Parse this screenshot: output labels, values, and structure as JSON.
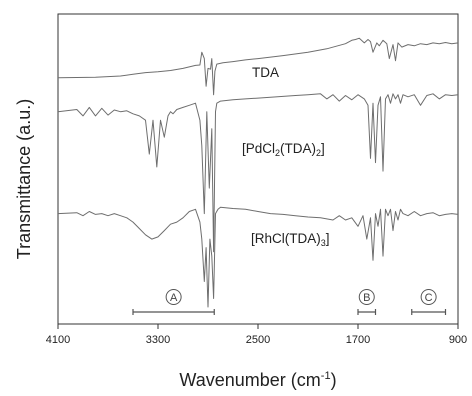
{
  "chart_data": {
    "type": "line",
    "xlabel": "Wavenumber (cm⁻¹)",
    "ylabel": "Transmittance (a.u.)",
    "xlim": [
      4100,
      900
    ],
    "x_reversed": true,
    "x_ticks": [
      4100,
      3300,
      2500,
      1700,
      900
    ],
    "y_ticks": [],
    "series": [
      {
        "name": "TDA",
        "label_parts": [
          "TDA"
        ],
        "color": "#6e6e6e",
        "x": [
          4100,
          3800,
          3600,
          3500,
          3400,
          3300,
          3200,
          3100,
          3000,
          2965,
          2950,
          2930,
          2915,
          2900,
          2880,
          2870,
          2855,
          2845,
          2830,
          2780,
          2700,
          2600,
          2500,
          2300,
          2100,
          1950,
          1800,
          1750,
          1720,
          1690,
          1650,
          1620,
          1600,
          1580,
          1550,
          1530,
          1500,
          1470,
          1450,
          1420,
          1400,
          1380,
          1350,
          1300,
          1250,
          1200,
          1150,
          1100,
          1050,
          1000,
          950,
          900
        ],
        "y": [
          0.8,
          0.81,
          0.84,
          0.88,
          0.92,
          0.94,
          0.97,
          1.02,
          1.09,
          1.1,
          1.4,
          1.25,
          0.6,
          1.02,
          1.0,
          1.25,
          0.4,
          0.95,
          1.12,
          1.15,
          1.18,
          1.22,
          1.25,
          1.32,
          1.4,
          1.48,
          1.6,
          1.68,
          1.7,
          1.73,
          1.62,
          1.7,
          1.65,
          1.4,
          1.62,
          1.55,
          1.68,
          1.6,
          1.25,
          1.58,
          1.2,
          1.62,
          1.52,
          1.58,
          1.55,
          1.6,
          1.58,
          1.62,
          1.6,
          1.63,
          1.6,
          1.62
        ]
      },
      {
        "name": "[PdCl2(TDA)2]",
        "label_parts": [
          "[PdCl",
          "2",
          "(TDA)",
          "2",
          "]"
        ],
        "color": "#6e6e6e",
        "x": [
          4100,
          3950,
          3900,
          3850,
          3800,
          3750,
          3700,
          3650,
          3600,
          3550,
          3500,
          3450,
          3400,
          3370,
          3340,
          3310,
          3280,
          3250,
          3220,
          3200,
          3180,
          3150,
          3100,
          3050,
          3000,
          2965,
          2950,
          2930,
          2910,
          2890,
          2870,
          2855,
          2840,
          2830,
          2800,
          2700,
          2600,
          2500,
          2400,
          2300,
          2200,
          2100,
          2000,
          1950,
          1900,
          1850,
          1800,
          1750,
          1700,
          1650,
          1620,
          1600,
          1580,
          1560,
          1540,
          1520,
          1500,
          1480,
          1460,
          1440,
          1420,
          1400,
          1380,
          1360,
          1340,
          1300,
          1250,
          1200,
          1150,
          1100,
          1050,
          1000,
          950,
          900
        ],
        "y": [
          0.0,
          0.05,
          -0.1,
          0.1,
          -0.1,
          0.08,
          -0.08,
          0.04,
          0.0,
          0.02,
          -0.05,
          -0.1,
          -0.2,
          -1.0,
          -0.2,
          -1.3,
          -0.2,
          -0.6,
          -0.1,
          0.0,
          -0.05,
          0.05,
          0.1,
          0.15,
          0.2,
          -0.2,
          -0.8,
          -2.4,
          0.0,
          -1.8,
          -0.4,
          -3.3,
          0.0,
          0.2,
          0.25,
          0.28,
          0.3,
          0.32,
          0.34,
          0.36,
          0.38,
          0.4,
          0.42,
          0.3,
          0.4,
          0.25,
          0.38,
          0.28,
          0.4,
          0.3,
          0.15,
          -1.1,
          0.2,
          -1.2,
          0.15,
          0.35,
          -1.4,
          0.3,
          0.4,
          0.2,
          0.42,
          0.3,
          0.4,
          0.2,
          0.4,
          0.35,
          0.4,
          0.15,
          0.38,
          0.42,
          0.3,
          0.4,
          0.38,
          0.4
        ]
      },
      {
        "name": "[RhCl(TDA)3]",
        "label_parts": [
          "[RhCl(TDA)",
          "3",
          "]"
        ],
        "color": "#6e6e6e",
        "x": [
          4100,
          3950,
          3900,
          3850,
          3800,
          3750,
          3700,
          3650,
          3600,
          3550,
          3500,
          3450,
          3400,
          3350,
          3300,
          3250,
          3200,
          3150,
          3100,
          3050,
          3000,
          2965,
          2950,
          2930,
          2915,
          2900,
          2885,
          2870,
          2855,
          2840,
          2820,
          2800,
          2700,
          2600,
          2500,
          2400,
          2300,
          2200,
          2100,
          2000,
          1900,
          1850,
          1800,
          1750,
          1700,
          1660,
          1630,
          1600,
          1580,
          1560,
          1540,
          1520,
          1500,
          1480,
          1460,
          1440,
          1420,
          1400,
          1380,
          1360,
          1340,
          1300,
          1250,
          1200,
          1150,
          1100,
          1050,
          1000,
          950,
          900
        ],
        "y": [
          -2.4,
          -2.38,
          -2.45,
          -2.35,
          -2.42,
          -2.4,
          -2.45,
          -2.4,
          -2.45,
          -2.5,
          -2.6,
          -2.75,
          -2.9,
          -3.0,
          -2.95,
          -2.8,
          -2.65,
          -2.6,
          -2.5,
          -2.35,
          -2.3,
          -2.6,
          -3.0,
          -4.0,
          -3.2,
          -4.6,
          -3.0,
          -3.4,
          -4.4,
          -2.4,
          -2.3,
          -2.25,
          -2.28,
          -2.3,
          -2.35,
          -2.4,
          -2.42,
          -2.45,
          -2.48,
          -2.5,
          -2.55,
          -2.45,
          -2.55,
          -2.5,
          -2.7,
          -2.45,
          -3.0,
          -2.5,
          -3.5,
          -2.4,
          -2.7,
          -2.3,
          -3.4,
          -2.3,
          -2.45,
          -2.3,
          -2.8,
          -2.35,
          -2.55,
          -2.3,
          -2.4,
          -2.45,
          -2.35,
          -2.45,
          -2.4,
          -2.38,
          -2.45,
          -2.42,
          -2.4,
          -2.42
        ]
      }
    ],
    "region_markers": [
      {
        "label": "A",
        "from": 3500,
        "to": 2850
      },
      {
        "label": "B",
        "from": 1700,
        "to": 1560
      },
      {
        "label": "C",
        "from": 1270,
        "to": 1000
      }
    ]
  }
}
